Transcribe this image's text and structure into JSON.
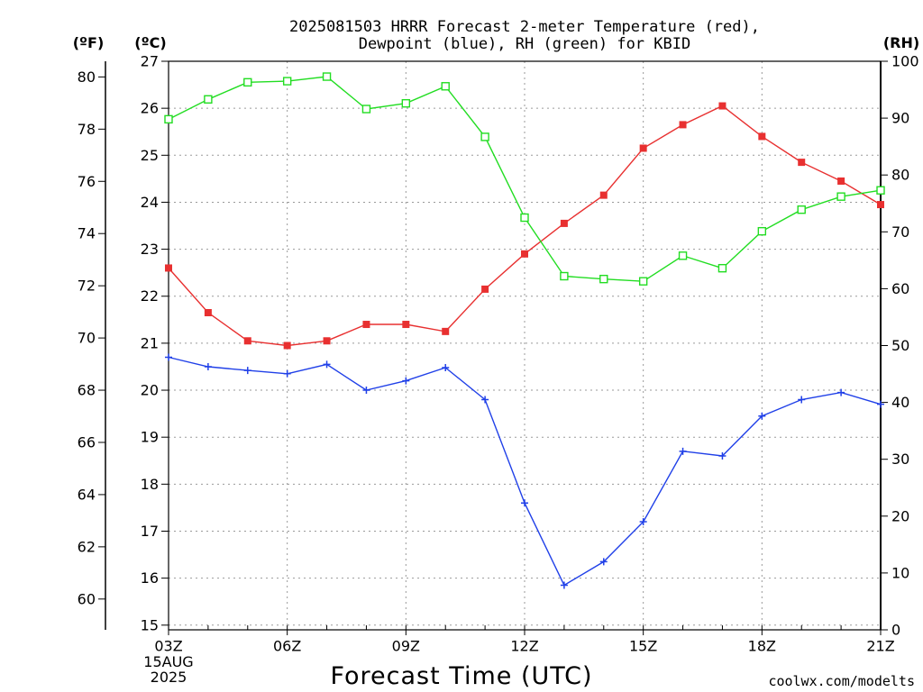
{
  "chart_data": {
    "type": "line",
    "title_lines": [
      "2025081503 HRRR Forecast 2-meter Temperature (red),",
      "Dewpoint (blue), RH (green) for KBID"
    ],
    "xlabel": "Forecast Time (UTC)",
    "x_ticks": [
      "03Z",
      "06Z",
      "09Z",
      "12Z",
      "15Z",
      "18Z",
      "21Z"
    ],
    "x_date_lines": [
      "15AUG",
      "2025"
    ],
    "x_hours": [
      3,
      4,
      5,
      6,
      7,
      8,
      9,
      10,
      11,
      12,
      13,
      14,
      15,
      16,
      17,
      18,
      19,
      20,
      21
    ],
    "xlim": [
      3,
      21
    ],
    "axes": {
      "celsius": {
        "unit_label": "(ºC)",
        "lim": [
          14.9,
          27
        ],
        "ticks": [
          15,
          16,
          17,
          18,
          19,
          20,
          21,
          22,
          23,
          24,
          25,
          26,
          27
        ]
      },
      "fahrenheit": {
        "unit_label": "(ºF)",
        "ticks": [
          60,
          62,
          64,
          66,
          68,
          70,
          72,
          74,
          76,
          78,
          80
        ]
      },
      "rh": {
        "unit_label": "(RH)",
        "lim": [
          0,
          100
        ],
        "ticks": [
          0,
          10,
          20,
          30,
          40,
          50,
          60,
          70,
          80,
          90,
          100
        ]
      }
    },
    "grid": true,
    "series": [
      {
        "name": "Temperature",
        "axis": "celsius",
        "color": "#e83030",
        "marker": "filled-square",
        "values": [
          22.6,
          21.65,
          21.05,
          20.95,
          21.05,
          21.4,
          21.4,
          21.25,
          22.15,
          22.9,
          23.55,
          24.15,
          25.15,
          25.65,
          26.05,
          25.4,
          24.85,
          24.45,
          23.95
        ]
      },
      {
        "name": "Dewpoint",
        "axis": "celsius",
        "color": "#2040e8",
        "marker": "plus",
        "values": [
          20.7,
          20.5,
          20.42,
          20.35,
          20.55,
          20.0,
          20.2,
          20.48,
          19.8,
          17.6,
          15.85,
          16.35,
          17.2,
          18.7,
          18.6,
          19.45,
          19.8,
          19.95,
          19.7
        ]
      },
      {
        "name": "RH",
        "axis": "rh",
        "color": "#22dd22",
        "marker": "open-square",
        "values": [
          89.8,
          93.3,
          96.3,
          96.5,
          97.3,
          91.6,
          92.6,
          95.6,
          86.7,
          72.5,
          62.2,
          61.7,
          61.3,
          65.8,
          63.6,
          70.1,
          73.9,
          76.2,
          77.3
        ]
      }
    ]
  },
  "watermark": "coolwx.com/modelts",
  "colors": {
    "temperature": "#e83030",
    "dewpoint": "#2040e8",
    "rh": "#22dd22",
    "watermark": "#e02020"
  }
}
